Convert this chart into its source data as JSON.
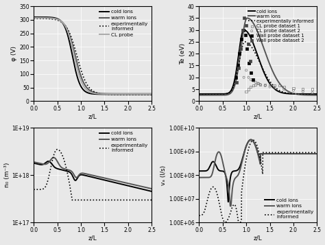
{
  "phi_ylabel": "φ (V)",
  "te_ylabel": "Te (eV)",
  "ne_ylabel": "n₀ (m⁻³)",
  "vx_ylabel": "vₐ (l/s)",
  "xlabel": "z/L",
  "background_color": "#e8e8e8",
  "grid_color": "white",
  "lw_main": 1.4,
  "lw_thin": 0.9,
  "fs_legend": 5.2,
  "fs_label": 6.5,
  "fs_tick": 5.5
}
